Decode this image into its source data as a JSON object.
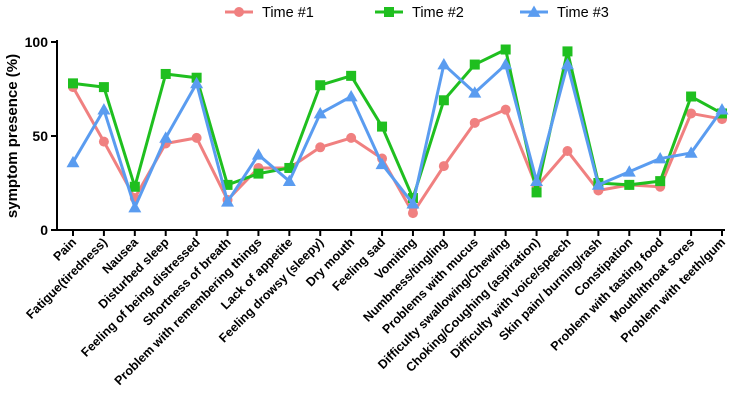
{
  "chart_data": {
    "type": "line",
    "title": "",
    "xlabel": "",
    "ylabel": "symptom presence (%)",
    "ylim": [
      0,
      100
    ],
    "yticks": [
      0,
      50,
      100
    ],
    "grid": false,
    "legend_position": "top-center",
    "categories": [
      "Pain",
      "Fatigue(tiredness)",
      "Nausea",
      "Disturbed sleep",
      "Feeling of being distressed",
      "Shortness of breath",
      "Problem with remembering things",
      "Lack of appetite",
      "Feeling drowsy (sleepy)",
      "Dry mouth",
      "Feeling sad",
      "Vomiting",
      "Numbness/tingling",
      "Problems with mucus",
      "Difficulty swallowing/Chewing",
      "Choking/Coughing (aspiration)",
      "Difficulty with voice/speech",
      "Skin pain/ burning/rash",
      "Constipation",
      "Problem with tasting food",
      "Mouth/throat sores",
      "Problem with teeth/gum"
    ],
    "series": [
      {
        "name": "Time #1",
        "color": "#f08080",
        "marker": "circle",
        "values": [
          76,
          47,
          17,
          46,
          49,
          16,
          33,
          33,
          44,
          49,
          38,
          9,
          34,
          57,
          64,
          23,
          42,
          21,
          24,
          23,
          62,
          59
        ]
      },
      {
        "name": "Time #2",
        "color": "#1fbf1f",
        "marker": "square",
        "values": [
          78,
          76,
          23,
          83,
          81,
          24,
          30,
          33,
          77,
          82,
          55,
          17,
          69,
          88,
          96,
          20,
          95,
          25,
          24,
          26,
          71,
          62
        ]
      },
      {
        "name": "Time #3",
        "color": "#5a9cf0",
        "marker": "triangle",
        "values": [
          36,
          64,
          12,
          49,
          78,
          15,
          40,
          26,
          62,
          71,
          35,
          14,
          88,
          73,
          88,
          26,
          88,
          24,
          31,
          38,
          41,
          64
        ]
      }
    ]
  }
}
